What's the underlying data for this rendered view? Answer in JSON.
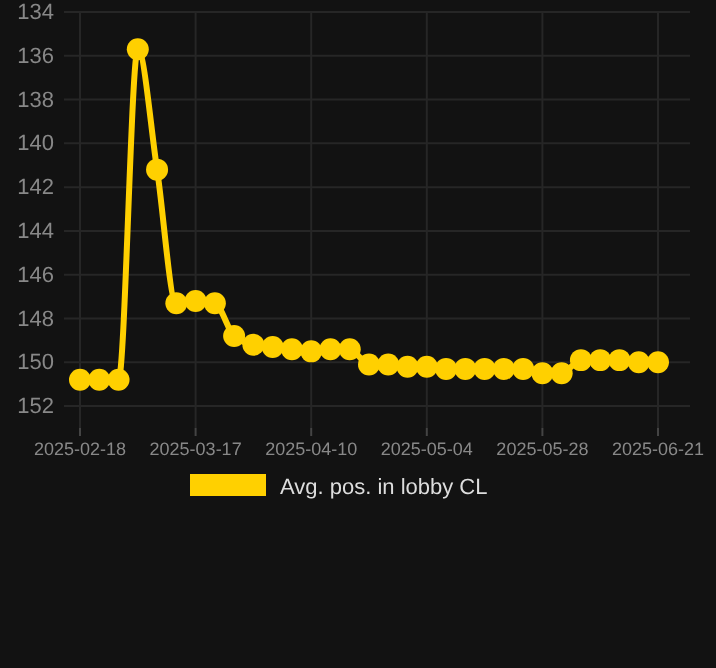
{
  "chart_data": {
    "type": "line",
    "categories": [
      "2025-02-18",
      null,
      null,
      null,
      null,
      null,
      "2025-03-17",
      null,
      null,
      null,
      null,
      null,
      "2025-04-10",
      null,
      null,
      null,
      null,
      null,
      "2025-05-04",
      null,
      null,
      null,
      null,
      null,
      "2025-05-28",
      null,
      null,
      null,
      null,
      null,
      "2025-06-21"
    ],
    "series": [
      {
        "name": "Avg. pos. in lobby CL",
        "color": "#ffd000",
        "values": [
          150.8,
          150.8,
          150.8,
          135.7,
          141.2,
          147.3,
          147.2,
          147.3,
          148.8,
          149.2,
          149.3,
          149.4,
          149.5,
          149.4,
          149.4,
          150.1,
          150.1,
          150.2,
          150.2,
          150.3,
          150.3,
          150.3,
          150.3,
          150.3,
          150.5,
          150.5,
          149.9,
          149.9,
          149.9,
          150.0,
          150.0
        ]
      }
    ],
    "ylim": [
      153,
      134
    ],
    "yticks": [
      134,
      136,
      138,
      140,
      142,
      144,
      146,
      148,
      150,
      152
    ],
    "grid": true,
    "legend": "bottom",
    "marker": "circle",
    "line_style": "solid"
  }
}
